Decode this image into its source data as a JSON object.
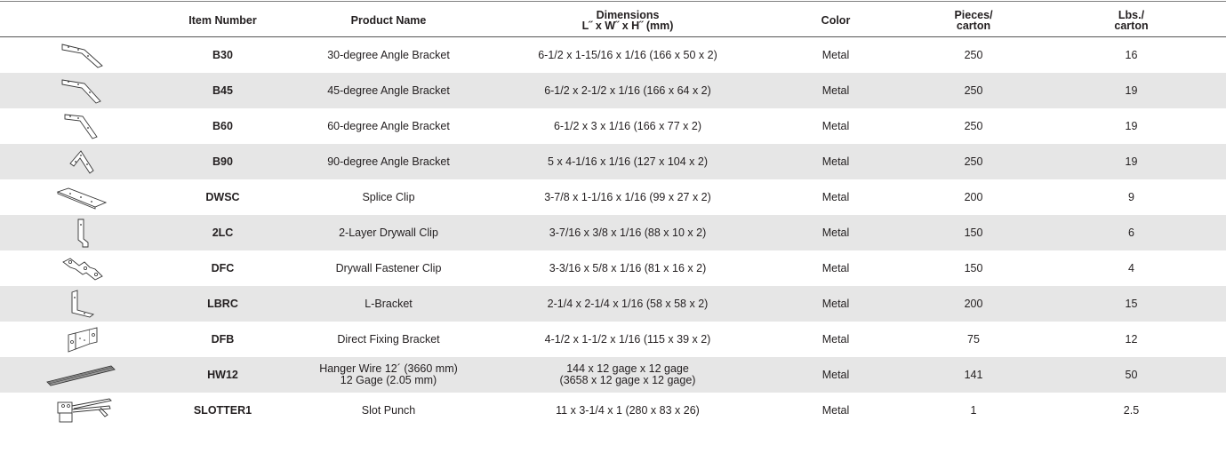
{
  "headers": {
    "item_number": "Item Number",
    "product_name": "Product Name",
    "dimensions_line1": "Dimensions",
    "dimensions_line2": "L˝ x W˝ x H˝ (mm)",
    "color": "Color",
    "pieces_line1": "Pieces/",
    "pieces_line2": "carton",
    "lbs_line1": "Lbs./",
    "lbs_line2": "carton"
  },
  "rows": [
    {
      "icon": "angle-bracket-30-icon",
      "item": "B30",
      "product": "30-degree Angle Bracket",
      "product2": "",
      "dims": "6-1/2 x 1-15/16 x 1/16 (166 x 50 x 2)",
      "dims2": "",
      "color": "Metal",
      "pieces": "250",
      "lbs": "16"
    },
    {
      "icon": "angle-bracket-45-icon",
      "item": "B45",
      "product": "45-degree Angle Bracket",
      "product2": "",
      "dims": "6-1/2 x 2-1/2 x 1/16 (166 x 64 x 2)",
      "dims2": "",
      "color": "Metal",
      "pieces": "250",
      "lbs": "19"
    },
    {
      "icon": "angle-bracket-60-icon",
      "item": "B60",
      "product": "60-degree Angle Bracket",
      "product2": "",
      "dims": "6-1/2 x 3 x 1/16 (166 x 77 x 2)",
      "dims2": "",
      "color": "Metal",
      "pieces": "250",
      "lbs": "19"
    },
    {
      "icon": "angle-bracket-90-icon",
      "item": "B90",
      "product": "90-degree Angle Bracket",
      "product2": "",
      "dims": "5 x 4-1/16 x 1/16 (127 x 104 x 2)",
      "dims2": "",
      "color": "Metal",
      "pieces": "250",
      "lbs": "19"
    },
    {
      "icon": "splice-clip-icon",
      "item": "DWSC",
      "product": "Splice Clip",
      "product2": "",
      "dims": "3-7/8 x 1-1/16 x 1/16 (99 x 27 x 2)",
      "dims2": "",
      "color": "Metal",
      "pieces": "200",
      "lbs": "9"
    },
    {
      "icon": "drywall-clip-icon",
      "item": "2LC",
      "product": "2-Layer Drywall Clip",
      "product2": "",
      "dims": "3-7/16 x 3/8 x 1/16 (88 x 10 x 2)",
      "dims2": "",
      "color": "Metal",
      "pieces": "150",
      "lbs": "6"
    },
    {
      "icon": "fastener-clip-icon",
      "item": "DFC",
      "product": "Drywall Fastener Clip",
      "product2": "",
      "dims": "3-3/16 x 5/8 x 1/16 (81 x 16 x 2)",
      "dims2": "",
      "color": "Metal",
      "pieces": "150",
      "lbs": "4"
    },
    {
      "icon": "l-bracket-icon",
      "item": "LBRC",
      "product": "L-Bracket",
      "product2": "",
      "dims": "2-1/4 x 2-1/4 x 1/16 (58 x 58 x 2)",
      "dims2": "",
      "color": "Metal",
      "pieces": "200",
      "lbs": "15"
    },
    {
      "icon": "fixing-bracket-icon",
      "item": "DFB",
      "product": "Direct Fixing Bracket",
      "product2": "",
      "dims": "4-1/2 x 1-1/2 x 1/16 (115 x 39 x 2)",
      "dims2": "",
      "color": "Metal",
      "pieces": "75",
      "lbs": "12"
    },
    {
      "icon": "hanger-wire-icon",
      "item": "HW12",
      "product": "Hanger Wire 12´ (3660 mm)",
      "product2": "12 Gage (2.05 mm)",
      "dims": "144 x 12 gage x 12 gage",
      "dims2": "(3658 x 12 gage x 12 gage)",
      "color": "Metal",
      "pieces": "141",
      "lbs": "50"
    },
    {
      "icon": "slot-punch-icon",
      "item": "SLOTTER1",
      "product": "Slot Punch",
      "product2": "",
      "dims": "11 x 3-1/4 x 1 (280 x 83 x 26)",
      "dims2": "",
      "color": "Metal",
      "pieces": "1",
      "lbs": "2.5"
    }
  ]
}
